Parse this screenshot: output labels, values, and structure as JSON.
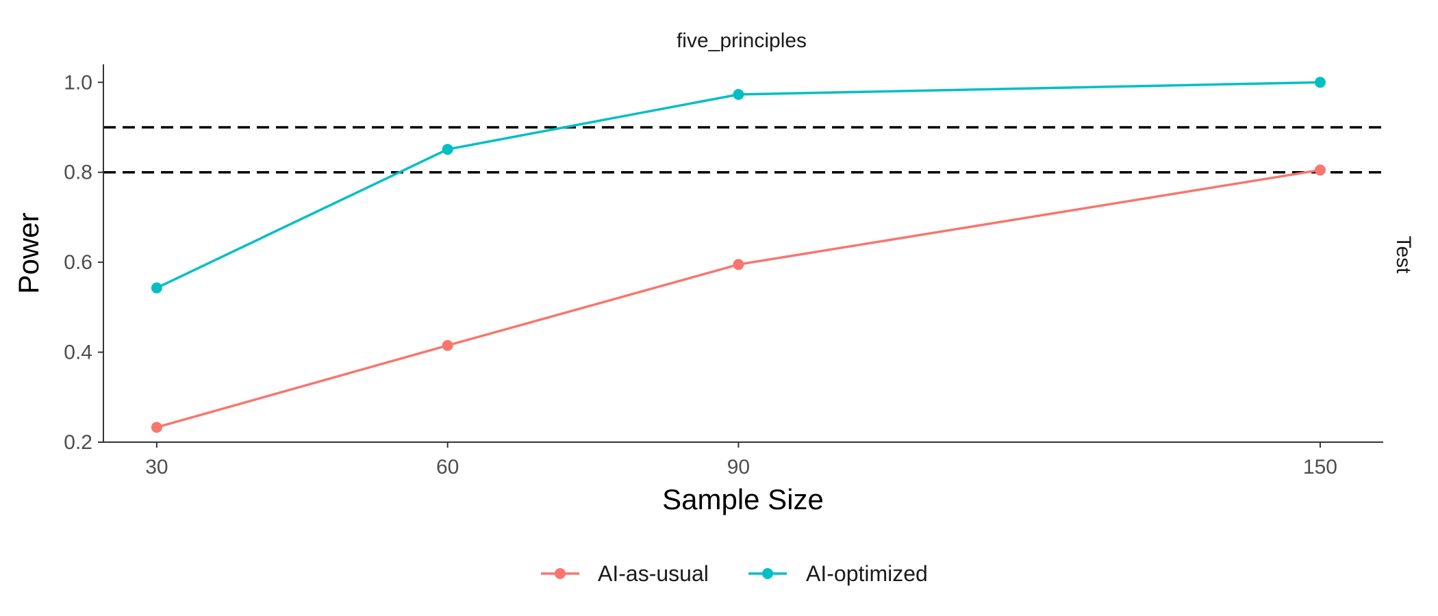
{
  "chart_data": {
    "type": "line",
    "title": "",
    "facet_label_top": "five_principles",
    "facet_label_right": "Test",
    "xlabel": "Sample Size",
    "ylabel": "Power",
    "x": [
      30,
      60,
      90,
      150
    ],
    "x_ticks": [
      "30",
      "60",
      "90",
      "150"
    ],
    "y_ticks": [
      "0.2",
      "0.4",
      "0.6",
      "0.8",
      "1.0"
    ],
    "xlim": [
      24.5,
      156.5
    ],
    "ylim": [
      0.2,
      1.04
    ],
    "grid": false,
    "legend_position": "bottom",
    "reference_lines": [
      0.8,
      0.9
    ],
    "series": [
      {
        "name": "AI-as-usual",
        "color": "#F8766D",
        "values": [
          0.233,
          0.415,
          0.595,
          0.805
        ]
      },
      {
        "name": "AI-optimized",
        "color": "#00BFC4",
        "values": [
          0.543,
          0.851,
          0.973,
          1.0
        ]
      }
    ]
  }
}
